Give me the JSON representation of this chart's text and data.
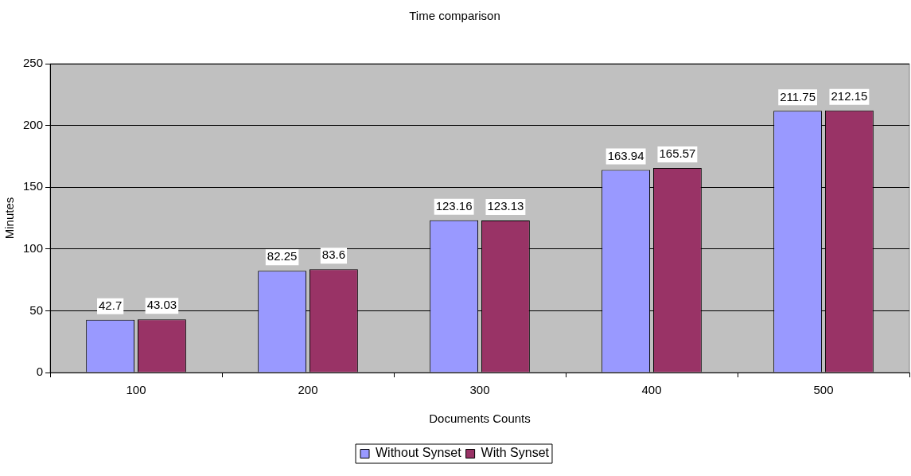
{
  "chart_data": {
    "type": "bar",
    "title": "Time comparison",
    "xlabel": "Documents Counts",
    "ylabel": "Minutes",
    "categories": [
      "100",
      "200",
      "300",
      "400",
      "500"
    ],
    "series": [
      {
        "name": "Without Synset",
        "color": "#9999ff",
        "values": [
          42.7,
          82.25,
          123.16,
          163.94,
          211.75
        ]
      },
      {
        "name": "With Synset",
        "color": "#993366",
        "values": [
          43.03,
          83.6,
          123.13,
          165.57,
          212.15
        ]
      }
    ],
    "ylim": [
      0,
      250
    ],
    "yticks": [
      0,
      50,
      100,
      150,
      200,
      250
    ],
    "grid": "y",
    "legend": "bottom",
    "data_labels": true
  }
}
